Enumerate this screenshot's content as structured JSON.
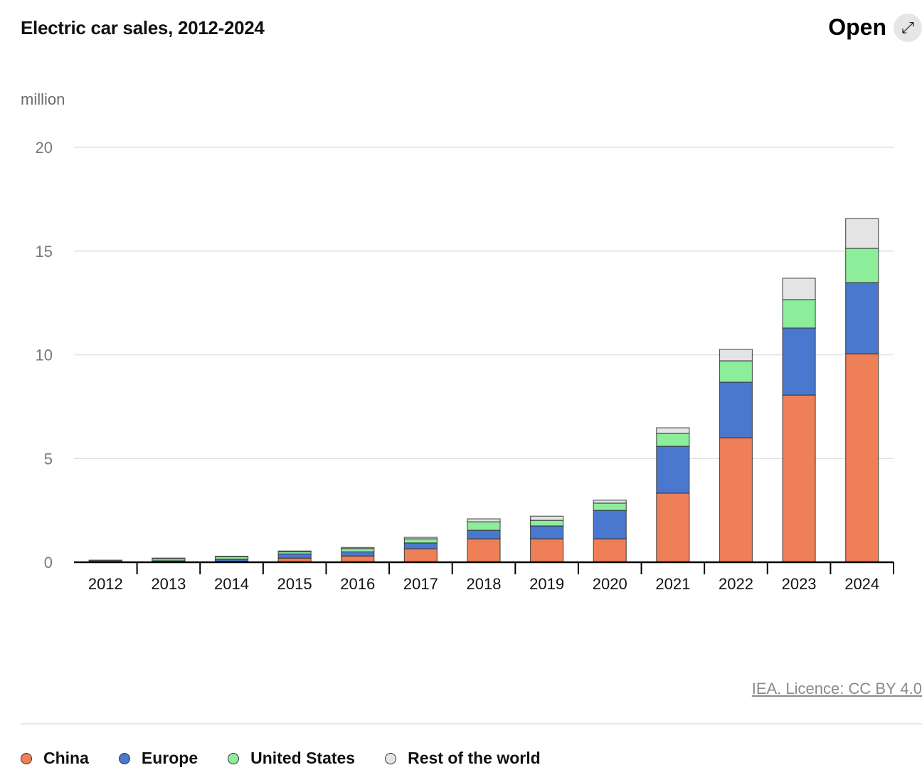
{
  "header": {
    "title": "Electric car sales, 2012-2024",
    "open_label": "Open",
    "open_icon": "expand-arrows-icon"
  },
  "credit": "IEA. Licence: CC BY 4.0",
  "chart_data": {
    "type": "bar",
    "stacked": true,
    "title": "Electric car sales, 2012-2024",
    "ylabel": "million",
    "ylim": [
      0,
      20
    ],
    "yticks": [
      0,
      5,
      10,
      15,
      20
    ],
    "grid": true,
    "legend_position": "bottom",
    "categories": [
      "2012",
      "2013",
      "2014",
      "2015",
      "2016",
      "2017",
      "2018",
      "2019",
      "2020",
      "2021",
      "2022",
      "2023",
      "2024"
    ],
    "series": [
      {
        "name": "China",
        "color": "#ef7f56",
        "values": [
          0.01,
          0.02,
          0.05,
          0.2,
          0.3,
          0.65,
          1.13,
          1.13,
          1.13,
          3.33,
          6.0,
          8.06,
          10.05
        ]
      },
      {
        "name": "Europe",
        "color": "#4a78cf",
        "values": [
          0.02,
          0.05,
          0.1,
          0.2,
          0.2,
          0.28,
          0.41,
          0.62,
          1.37,
          2.26,
          2.68,
          3.23,
          3.43
        ]
      },
      {
        "name": "United States",
        "color": "#8cee9a",
        "values": [
          0.05,
          0.1,
          0.12,
          0.1,
          0.16,
          0.2,
          0.41,
          0.27,
          0.35,
          0.62,
          1.03,
          1.37,
          1.65
        ]
      },
      {
        "name": "Rest of the world",
        "color": "#e4e4e4",
        "values": [
          0.02,
          0.03,
          0.02,
          0.04,
          0.05,
          0.07,
          0.14,
          0.2,
          0.14,
          0.27,
          0.55,
          1.03,
          1.44
        ]
      }
    ]
  }
}
